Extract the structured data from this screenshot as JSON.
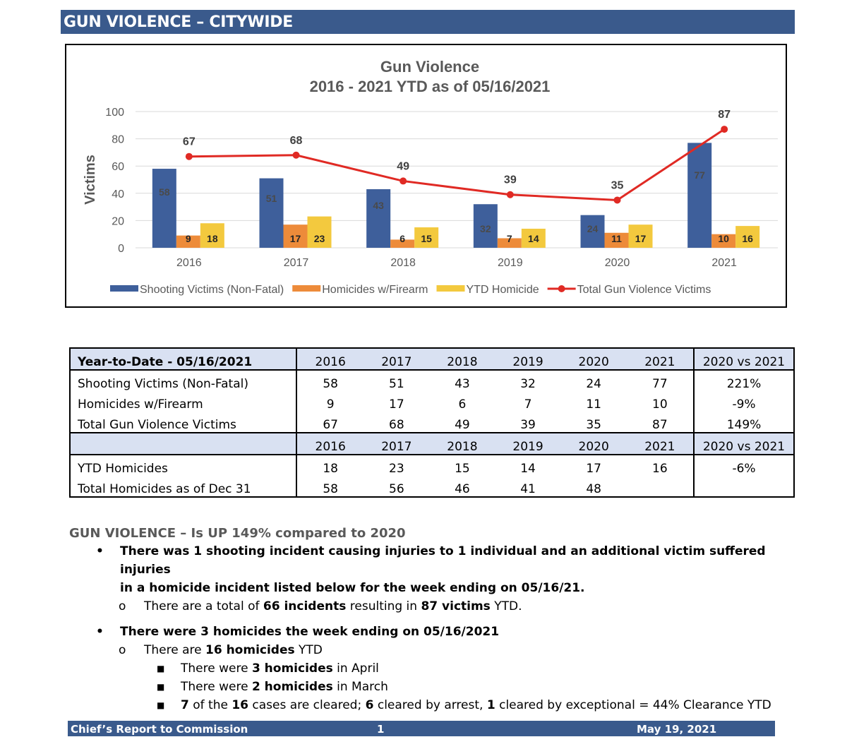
{
  "banner": {
    "title": "GUN VIOLENCE – CITYWIDE"
  },
  "chart_data": {
    "type": "bar+line",
    "title": "Gun Violence",
    "subtitle": "2016 - 2021 YTD as of 05/16/2021",
    "ylabel": "Victims",
    "ylim": [
      0,
      100
    ],
    "yticks": [
      0,
      20,
      40,
      60,
      80,
      100
    ],
    "categories": [
      "2016",
      "2017",
      "2018",
      "2019",
      "2020",
      "2021"
    ],
    "series": [
      {
        "name": "Shooting Victims (Non-Fatal)",
        "type": "bar",
        "color": "#3e5f9b",
        "values": [
          58,
          51,
          43,
          32,
          24,
          77
        ]
      },
      {
        "name": "Homicides w/Firearm",
        "type": "bar",
        "color": "#ed8b3a",
        "values": [
          9,
          17,
          6,
          7,
          11,
          10
        ]
      },
      {
        "name": "YTD Homicide",
        "type": "bar",
        "color": "#f3c93e",
        "values": [
          18,
          23,
          15,
          14,
          17,
          16
        ]
      },
      {
        "name": "Total Gun Violence Victims",
        "type": "line",
        "color": "#e02a24",
        "values": [
          67,
          68,
          49,
          39,
          35,
          87
        ]
      }
    ]
  },
  "table": {
    "section1": {
      "header_label": "Year-to-Date - 05/16/2021",
      "years": [
        "2016",
        "2017",
        "2018",
        "2019",
        "2020",
        "2021"
      ],
      "cmp_label": "2020 vs 2021",
      "rows": [
        {
          "label": "Shooting Victims (Non-Fatal)",
          "values": [
            "58",
            "51",
            "43",
            "32",
            "24",
            "77"
          ],
          "cmp": "221%"
        },
        {
          "label": "Homicides w/Firearm",
          "values": [
            "9",
            "17",
            "6",
            "7",
            "11",
            "10"
          ],
          "cmp": "-9%"
        },
        {
          "label": "Total Gun Violence Victims",
          "values": [
            "67",
            "68",
            "49",
            "39",
            "35",
            "87"
          ],
          "cmp": "149%"
        }
      ]
    },
    "section2": {
      "header_label": "",
      "years": [
        "2016",
        "2017",
        "2018",
        "2019",
        "2020",
        "2021"
      ],
      "cmp_label": "2020 vs 2021",
      "rows": [
        {
          "label": "YTD Homicides",
          "values": [
            "18",
            "23",
            "15",
            "14",
            "17",
            "16"
          ],
          "cmp": "-6%"
        },
        {
          "label": "Total Homicides as of Dec 31",
          "values": [
            "58",
            "56",
            "46",
            "41",
            "48",
            ""
          ],
          "cmp": ""
        }
      ]
    }
  },
  "notes": {
    "head_a": "GUN VIOLENCE",
    "head_b": " – Is UP 149% compared to 2020",
    "b1_line1": "There was 1 shooting incident causing injuries to 1 individual and an additional victim suffered injuries",
    "b1_line2": "in a homicide incident listed below for the week ending on 05/16/21.",
    "b1_sub_a": "There are a total of ",
    "b1_sub_b": "66 incidents",
    "b1_sub_c": " resulting in ",
    "b1_sub_d": "87 victims",
    "b1_sub_e": " YTD.",
    "b2_line": "There were 3 homicides the week ending on 05/16/2021",
    "b2_sub_a": "There are ",
    "b2_sub_b": "16 homicides",
    "b2_sub_c": " YTD",
    "b2_i1_a": "There were ",
    "b2_i1_b": "3 homicides",
    "b2_i1_c": " in April",
    "b2_i2_a": "There were ",
    "b2_i2_b": "2 homicides",
    "b2_i2_c": " in March",
    "b2_i3_a": "7",
    "b2_i3_b": " of the ",
    "b2_i3_c": "16",
    "b2_i3_d": " cases are cleared; ",
    "b2_i3_e": "6",
    "b2_i3_f": " cleared by arrest, ",
    "b2_i3_g": "1",
    "b2_i3_h": " cleared by exceptional = 44% Clearance YTD"
  },
  "footer": {
    "left": "Chief’s Report to Commission",
    "page": "1",
    "date": "May 19, 2021"
  }
}
